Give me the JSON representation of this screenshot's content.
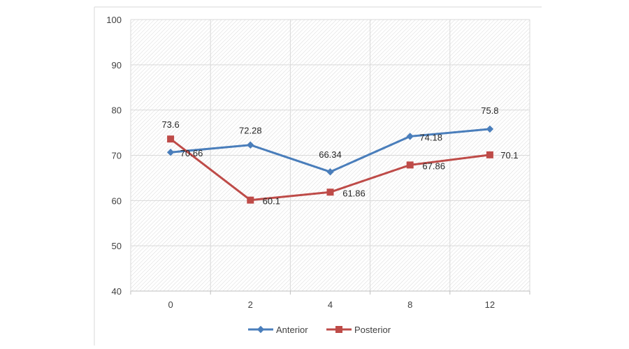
{
  "chart_data": {
    "type": "line",
    "categories": [
      "0",
      "2",
      "4",
      "8",
      "12"
    ],
    "series": [
      {
        "name": "Anterior",
        "values": [
          70.66,
          72.28,
          66.34,
          74.18,
          75.8
        ],
        "labels": [
          "70.66",
          "72.28",
          "66.34",
          "74.18",
          "75.8"
        ],
        "color": "#4a7ebb",
        "marker": "diamond"
      },
      {
        "name": "Posterior",
        "values": [
          73.6,
          60.1,
          61.86,
          67.86,
          70.1
        ],
        "labels": [
          "73.6",
          "60.1",
          "61.86",
          "67.86",
          "70.1"
        ],
        "color": "#be4b48",
        "marker": "square"
      }
    ],
    "title": "",
    "xlabel": "",
    "ylabel": "",
    "ylim": [
      40,
      100
    ],
    "yticks": [
      "40",
      "50",
      "60",
      "70",
      "80",
      "90",
      "100"
    ],
    "grid": true,
    "legend": "bottom"
  }
}
